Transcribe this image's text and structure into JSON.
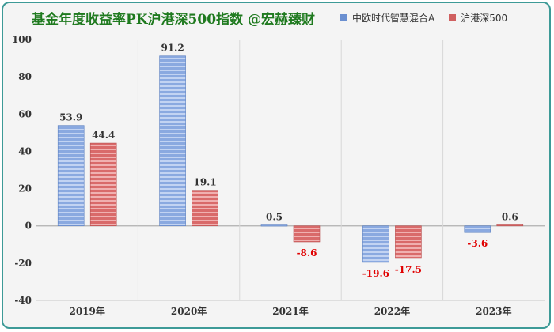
{
  "chart_data": {
    "type": "bar",
    "title": "基金年度收益率PK沪港深500指数   @宏赫臻财",
    "categories": [
      "2019年",
      "2020年",
      "2021年",
      "2022年",
      "2023年"
    ],
    "series": [
      {
        "name": "中欧时代智慧混合A",
        "color": "#6a8fd0",
        "values": [
          53.9,
          91.2,
          0.5,
          -19.6,
          -3.6
        ]
      },
      {
        "name": "沪港深500",
        "color": "#d06060",
        "values": [
          44.4,
          19.1,
          -8.6,
          -17.5,
          0.6
        ]
      }
    ],
    "ylim": [
      -40,
      100
    ],
    "yticks": [
      -40,
      -20,
      0,
      20,
      40,
      60,
      80,
      100
    ],
    "grid": true,
    "legend_position": "top-right",
    "negative_label_color": "#e00000",
    "positive_label_color": "#333333"
  }
}
